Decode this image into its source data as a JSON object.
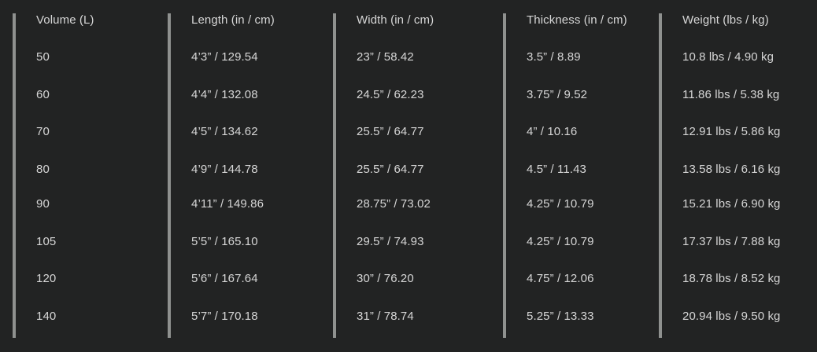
{
  "columns": [
    {
      "header": "Volume (L)",
      "values": [
        "50",
        "60",
        "70",
        "80",
        "90",
        "105",
        "120",
        "140"
      ]
    },
    {
      "header": "Length (in / cm)",
      "values": [
        "4’3” / 129.54",
        "4’4” / 132.08",
        "4’5” / 134.62",
        "4’9” / 144.78",
        "4’11” / 149.86",
        "5’5” / 165.10",
        "5’6” / 167.64",
        "5’7” / 170.18"
      ]
    },
    {
      "header": "Width (in / cm)",
      "values": [
        "23” / 58.42",
        "24.5” / 62.23",
        "25.5” / 64.77",
        "25.5” / 64.77",
        "28.75” / 73.02",
        "29.5” / 74.93",
        "30” / 76.20",
        "31” / 78.74"
      ]
    },
    {
      "header": "Thickness (in / cm)",
      "values": [
        "3.5” / 8.89",
        "3.75” / 9.52",
        "4” / 10.16",
        "4.5” / 11.43",
        "4.25” / 10.79",
        "4.25” / 10.79",
        "4.75” / 12.06",
        "5.25” / 13.33"
      ]
    },
    {
      "header": "Weight (lbs / kg)",
      "values": [
        "10.8 lbs / 4.90 kg",
        "11.86 lbs / 5.38 kg",
        "12.91 lbs / 5.86 kg",
        "13.58 lbs / 6.16 kg",
        "15.21 lbs / 6.90 kg",
        "17.37 lbs / 7.88 kg",
        "18.78 lbs / 8.52 kg",
        "20.94 lbs / 9.50 kg"
      ]
    }
  ],
  "colors": {
    "background": "#222323",
    "divider": "#8f918f",
    "text": "#d6d6d6"
  }
}
